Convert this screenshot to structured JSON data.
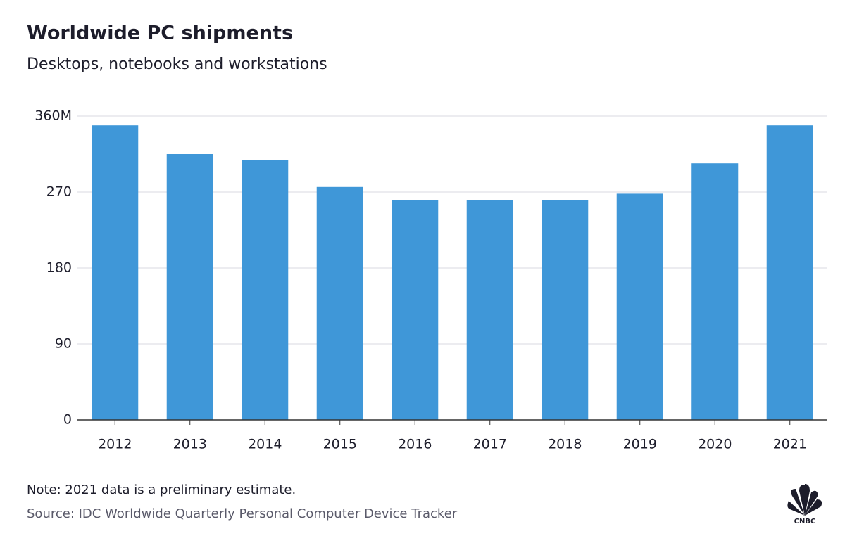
{
  "chart_data": {
    "type": "bar",
    "title": "Worldwide PC shipments",
    "subtitle": "Desktops, notebooks and workstations",
    "categories": [
      "2012",
      "2013",
      "2014",
      "2015",
      "2016",
      "2017",
      "2018",
      "2019",
      "2020",
      "2021"
    ],
    "values": [
      349,
      315,
      308,
      276,
      260,
      260,
      260,
      268,
      304,
      349
    ],
    "color": "#3f97d8",
    "ylim": [
      0,
      360
    ],
    "yticks": [
      0,
      90,
      180,
      270,
      {
        "value": 360,
        "label": "360M"
      }
    ],
    "grid": true,
    "note": "Note: 2021 data is a preliminary estimate.",
    "source": "Source: IDC Worldwide Quarterly Personal Computer Device Tracker",
    "logo": "CNBC"
  }
}
